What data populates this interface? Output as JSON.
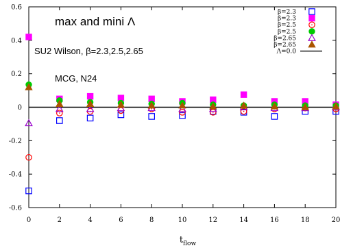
{
  "chart_data": {
    "type": "scatter",
    "title": "",
    "xlabel": "t",
    "xlabel_sub": "flow",
    "ylabel": "",
    "xlim": [
      0,
      20
    ],
    "ylim": [
      -0.6,
      0.6
    ],
    "x_ticks": [
      0,
      2,
      4,
      6,
      8,
      10,
      12,
      14,
      16,
      18,
      20
    ],
    "y_ticks": [
      -0.6,
      -0.4,
      -0.2,
      0,
      0.2,
      0.4,
      0.6
    ],
    "x_tick_labels": [
      "0",
      "2",
      "4",
      "6",
      "8",
      "10",
      "12",
      "14",
      "16",
      "18",
      "20"
    ],
    "y_tick_labels": [
      "-0.6",
      "-0.4",
      "-0.2",
      "0",
      "0.2",
      "0.4",
      "0.6"
    ],
    "grid": false,
    "legend_position": "top-right",
    "annotations": [
      "max and mini Λ",
      "SU2 Wilson, β=2.3,2.5,2.65",
      "MCG, N24"
    ],
    "series": [
      {
        "name": "β=2.3",
        "marker": "open-square",
        "color": "#0000ff",
        "x": [
          0,
          2,
          4,
          6,
          8,
          10,
          12,
          14,
          16,
          18,
          20
        ],
        "y": [
          -0.5,
          -0.08,
          -0.065,
          -0.045,
          -0.055,
          -0.05,
          -0.025,
          -0.03,
          -0.055,
          -0.025,
          -0.025
        ]
      },
      {
        "name": "β=2.3",
        "marker": "filled-square",
        "color": "#ff00ff",
        "x": [
          0,
          2,
          4,
          6,
          8,
          10,
          12,
          14,
          16,
          18,
          20
        ],
        "y": [
          0.42,
          0.05,
          0.065,
          0.055,
          0.05,
          0.035,
          0.045,
          0.075,
          0.035,
          0.035,
          0.015
        ]
      },
      {
        "name": "β=2.5",
        "marker": "open-circle",
        "color": "#ff0000",
        "x": [
          0,
          2,
          4,
          6,
          8,
          10,
          12,
          14,
          16,
          18,
          20
        ],
        "y": [
          -0.3,
          -0.035,
          -0.025,
          -0.02,
          -0.01,
          -0.03,
          -0.03,
          -0.025,
          -0.01,
          -0.005,
          -0.01
        ]
      },
      {
        "name": "β=2.5",
        "marker": "filled-circle",
        "color": "#00cc00",
        "x": [
          0,
          2,
          4,
          6,
          8,
          10,
          12,
          14,
          16,
          18,
          20
        ],
        "y": [
          0.135,
          0.04,
          0.03,
          0.025,
          0.02,
          0.025,
          0.015,
          0.01,
          0.015,
          0.01,
          0.01
        ]
      },
      {
        "name": "β=2.65",
        "marker": "open-triangle",
        "color": "#9900cc",
        "x": [
          0,
          2,
          4,
          6,
          8,
          10,
          12,
          14,
          16,
          18,
          20
        ],
        "y": [
          -0.095,
          -0.01,
          -0.01,
          -0.005,
          -0.005,
          -0.01,
          -0.01,
          0.0,
          -0.005,
          -0.005,
          0.0
        ]
      },
      {
        "name": "β=2.65",
        "marker": "filled-triangle",
        "color": "#aa5500",
        "x": [
          0,
          2,
          4,
          6,
          8,
          10,
          12,
          14,
          16,
          18,
          20
        ],
        "y": [
          0.12,
          0.02,
          0.02,
          0.015,
          0.01,
          0.01,
          0.005,
          0.01,
          0.005,
          0.0,
          0.005
        ]
      }
    ],
    "reference_line": {
      "name": "Λ=0.0",
      "y": 0.0,
      "color": "#000000"
    }
  }
}
